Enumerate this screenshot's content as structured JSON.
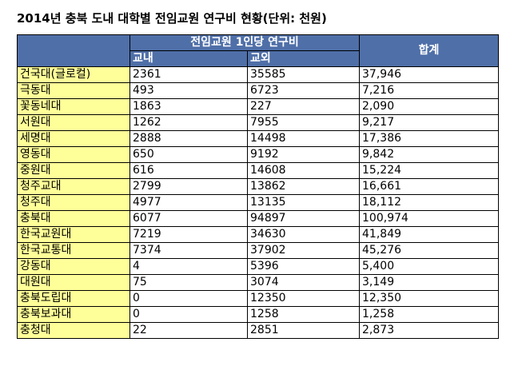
{
  "title": "2014년 충북 도내 대학별 전임교원 연구비 현황(단위: 천원)",
  "header": {
    "group": "전임교원 1인당 연구비",
    "inside": "교내",
    "outside": "교외",
    "total": "합계"
  },
  "rows": [
    {
      "name": "건국대(글로컬)",
      "inside": "2361",
      "outside": "35585",
      "total": "37,946"
    },
    {
      "name": "극동대",
      "inside": "493",
      "outside": "6723",
      "total": "7,216"
    },
    {
      "name": "꽃동네대",
      "inside": "1863",
      "outside": "227",
      "total": "2,090"
    },
    {
      "name": "서원대",
      "inside": "1262",
      "outside": "7955",
      "total": "9,217"
    },
    {
      "name": "세명대",
      "inside": "2888",
      "outside": "14498",
      "total": "17,386"
    },
    {
      "name": "영동대",
      "inside": "650",
      "outside": "9192",
      "total": "9,842"
    },
    {
      "name": "중원대",
      "inside": "616",
      "outside": "14608",
      "total": "15,224"
    },
    {
      "name": "청주교대",
      "inside": "2799",
      "outside": "13862",
      "total": "16,661"
    },
    {
      "name": "청주대",
      "inside": "4977",
      "outside": "13135",
      "total": "18,112"
    },
    {
      "name": "충북대",
      "inside": "6077",
      "outside": "94897",
      "total": "100,974"
    },
    {
      "name": "한국교원대",
      "inside": "7219",
      "outside": "34630",
      "total": "41,849"
    },
    {
      "name": "한국교통대",
      "inside": "7374",
      "outside": "37902",
      "total": "45,276"
    },
    {
      "name": "강동대",
      "inside": "4",
      "outside": "5396",
      "total": "5,400"
    },
    {
      "name": "대원대",
      "inside": "75",
      "outside": "3074",
      "total": "3,149"
    },
    {
      "name": "충북도립대",
      "inside": "0",
      "outside": "12350",
      "total": "12,350"
    },
    {
      "name": "충북보과대",
      "inside": "0",
      "outside": "1258",
      "total": "1,258"
    },
    {
      "name": "충청대",
      "inside": "22",
      "outside": "2851",
      "total": "2,873"
    }
  ],
  "colors": {
    "header_bg": "#4f6fa8",
    "name_bg": "#ffff99"
  }
}
